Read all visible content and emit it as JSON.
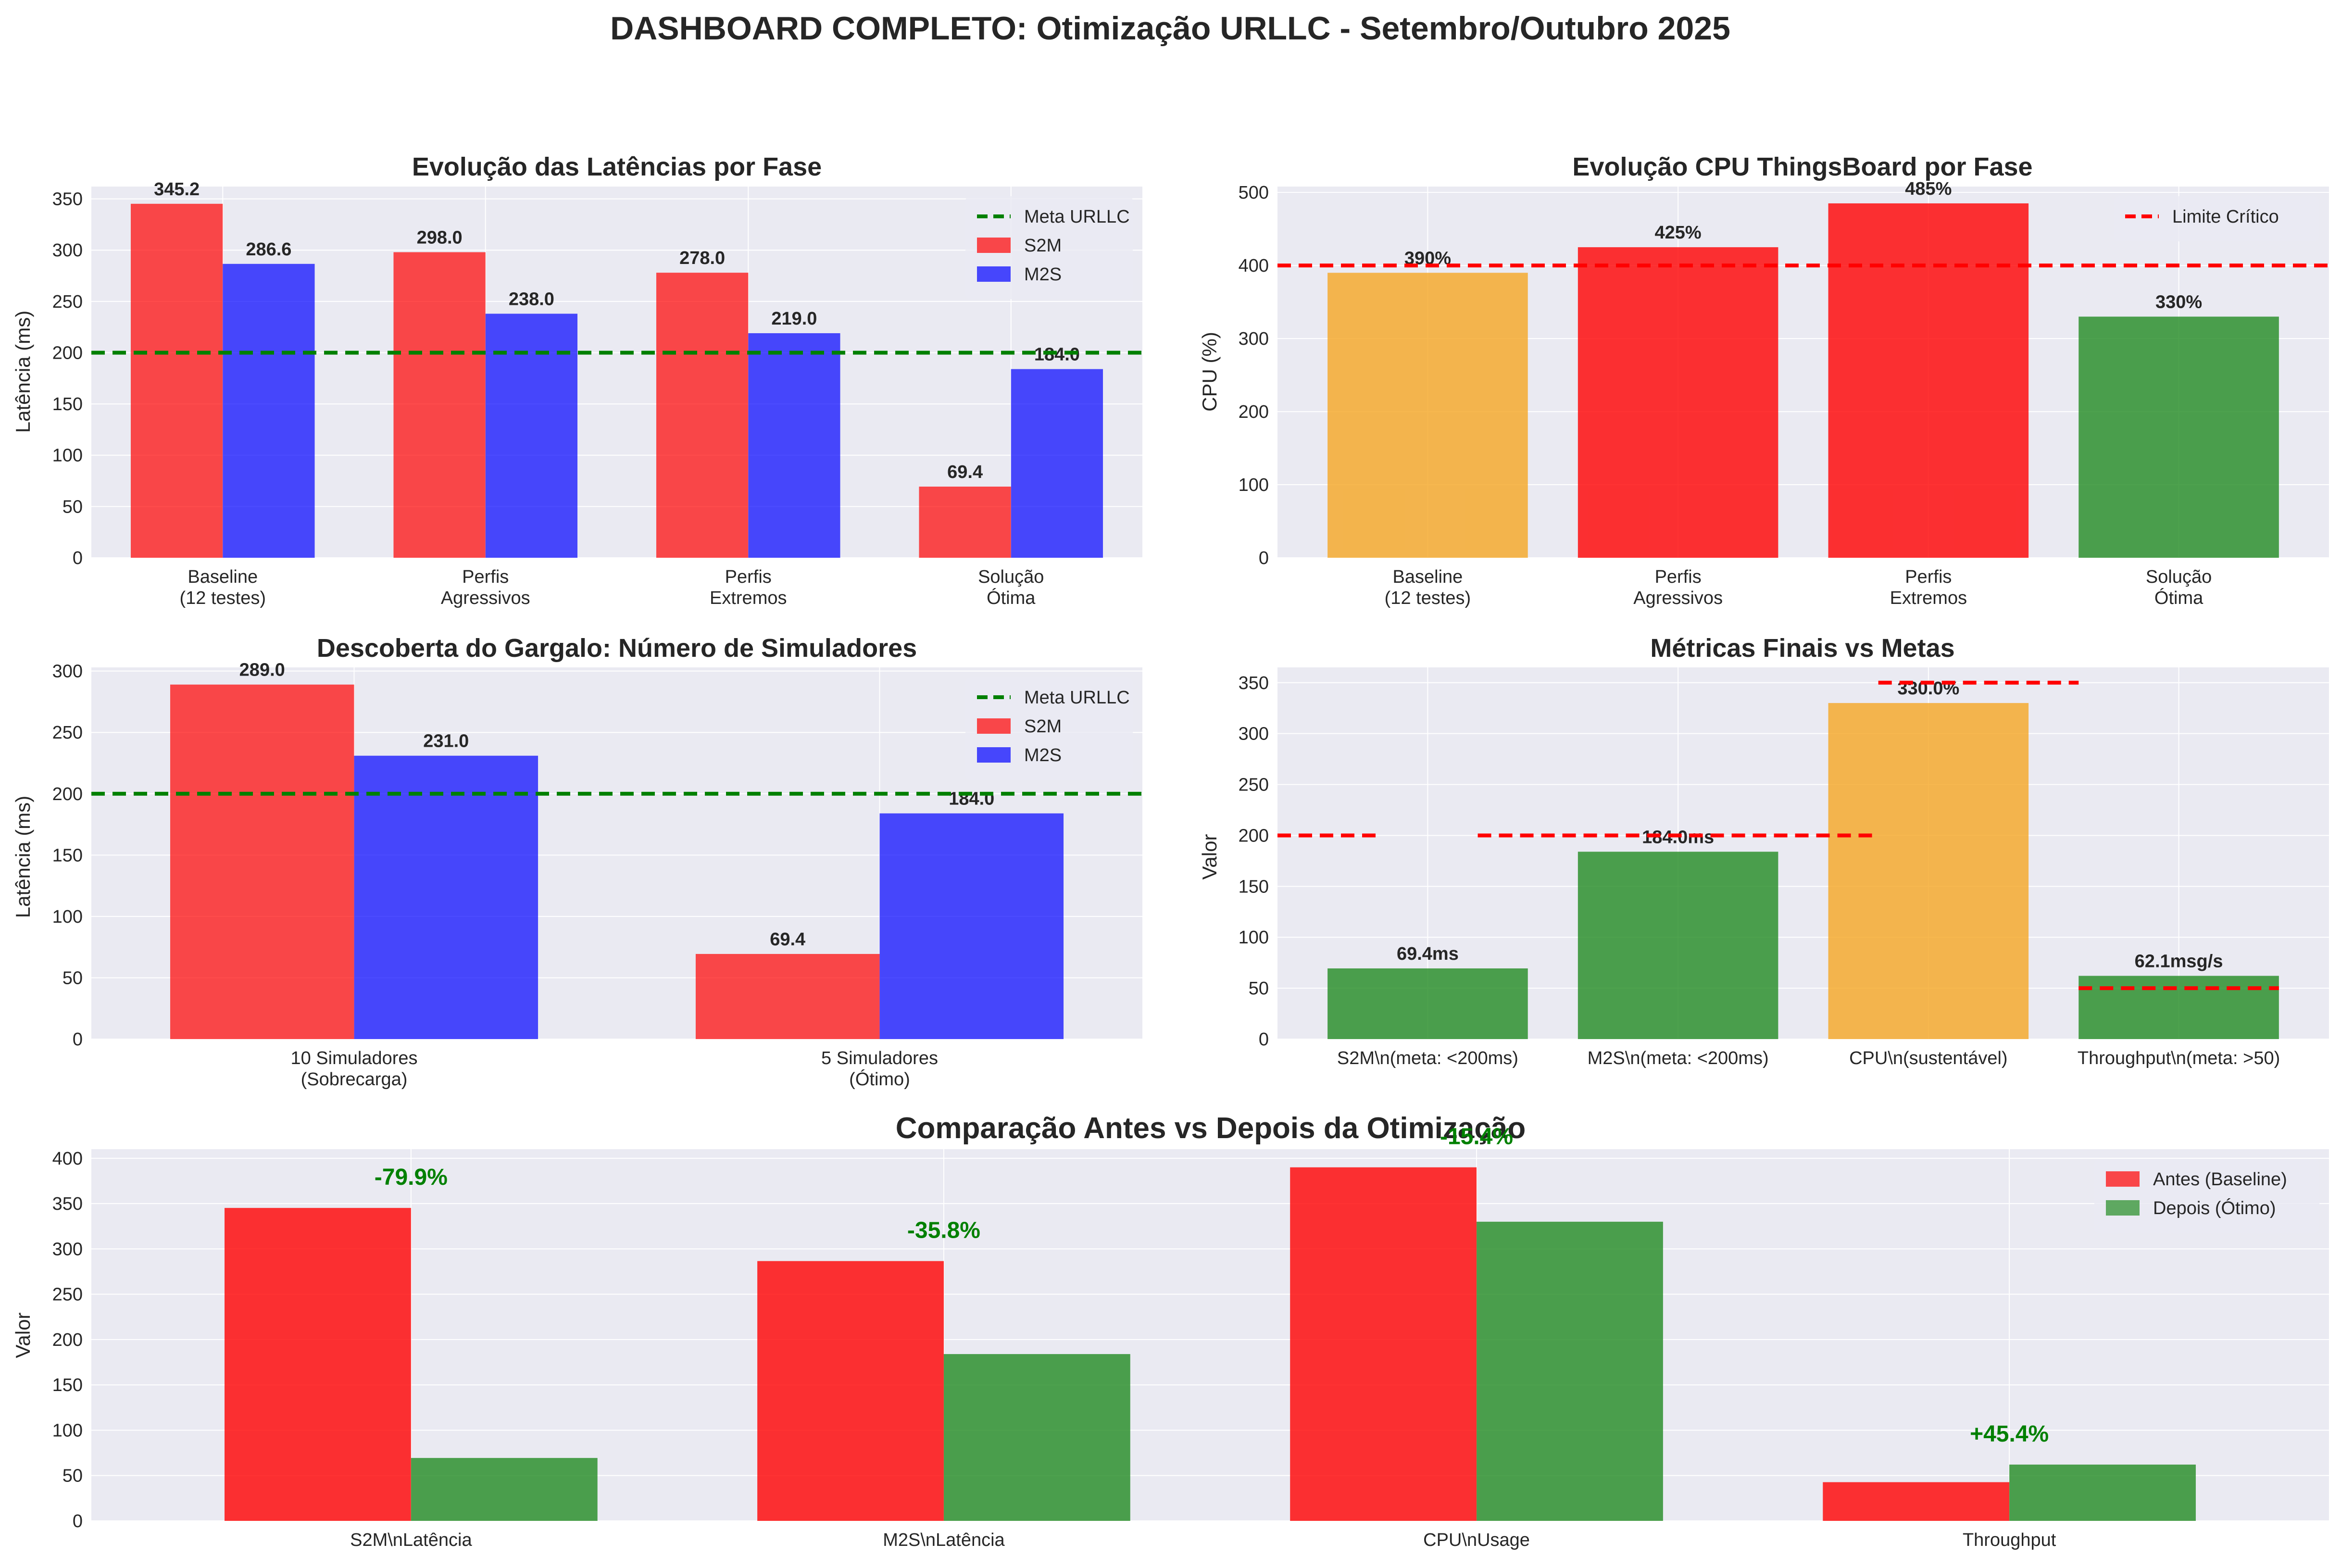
{
  "title": "DASHBOARD COMPLETO: Otimização URLLC - Setembro/Outubro 2025",
  "colors": {
    "s2m": "#FF0000",
    "m2s": "#0000FF",
    "target_green": "#008000",
    "limit_red": "#FF0000",
    "warning_orange": "#F5A623",
    "good_green": "#228B22",
    "axes_bg": "#EAEAF2",
    "grid": "#FFFFFF",
    "gain_text": "#008000"
  },
  "chart_data": [
    {
      "id": "latency",
      "type": "bar",
      "title": "Evolução das Latências por Fase",
      "xlabel": "",
      "ylabel": "Latência (ms)",
      "categories": [
        [
          "Baseline",
          "(12 testes)"
        ],
        [
          "Perfis",
          "Agressivos"
        ],
        [
          "Perfis",
          "Extremos"
        ],
        [
          "Solução",
          "Ótima"
        ]
      ],
      "series": [
        {
          "name": "S2M",
          "values": [
            345.2,
            298.0,
            278.0,
            69.4
          ],
          "labels": [
            "345.2",
            "298.0",
            "278.0",
            "69.4"
          ],
          "color": "#FF0000"
        },
        {
          "name": "M2S",
          "values": [
            286.6,
            238.0,
            219.0,
            184.0
          ],
          "labels": [
            "286.6",
            "238.0",
            "219.0",
            "184.0"
          ],
          "color": "#0000FF"
        }
      ],
      "hlines": [
        {
          "name": "Meta URLLC",
          "y": 200,
          "color": "#008000"
        }
      ],
      "legend": [
        "Meta URLLC",
        "S2M",
        "M2S"
      ],
      "legend_position": "top-right",
      "ylim": [
        0,
        362
      ],
      "yticks": [
        0,
        50,
        100,
        150,
        200,
        250,
        300,
        350
      ],
      "grid": true
    },
    {
      "id": "cpu",
      "type": "bar",
      "title": "Evolução CPU ThingsBoard por Fase",
      "xlabel": "",
      "ylabel": "CPU (%)",
      "categories": [
        [
          "Baseline",
          "(12 testes)"
        ],
        [
          "Perfis",
          "Agressivos"
        ],
        [
          "Perfis",
          "Extremos"
        ],
        [
          "Solução",
          "Ótima"
        ]
      ],
      "values": [
        390,
        425,
        485,
        330
      ],
      "labels": [
        "390%",
        "425%",
        "485%",
        "330%"
      ],
      "bar_colors": [
        "#F5A623",
        "#FF0000",
        "#FF0000",
        "#228B22"
      ],
      "hlines": [
        {
          "name": "Limite Crítico",
          "y": 400,
          "color": "#FF0000"
        }
      ],
      "legend": [
        "Limite Crítico"
      ],
      "legend_position": "top-right",
      "ylim": [
        0,
        508
      ],
      "yticks": [
        0,
        100,
        200,
        300,
        400,
        500
      ],
      "grid": true
    },
    {
      "id": "simulators",
      "type": "bar",
      "title": "Descoberta do Gargalo: Número de Simuladores",
      "xlabel": "",
      "ylabel": "Latência (ms)",
      "categories": [
        [
          "10 Simuladores",
          "(Sobrecarga)"
        ],
        [
          "5 Simuladores",
          "(Ótimo)"
        ]
      ],
      "series": [
        {
          "name": "S2M",
          "values": [
            289.0,
            69.4
          ],
          "labels": [
            "289.0",
            "69.4"
          ],
          "color": "#FF0000"
        },
        {
          "name": "M2S",
          "values": [
            231.0,
            184.0
          ],
          "labels": [
            "231.0",
            "184.0"
          ],
          "color": "#0000FF"
        }
      ],
      "hlines": [
        {
          "name": "Meta URLLC",
          "y": 200,
          "color": "#008000"
        }
      ],
      "legend": [
        "Meta URLLC",
        "S2M",
        "M2S"
      ],
      "legend_position": "top-right",
      "ylim": [
        0,
        303
      ],
      "yticks": [
        0,
        50,
        100,
        150,
        200,
        250,
        300
      ],
      "grid": true
    },
    {
      "id": "final",
      "type": "bar",
      "title": "Métricas Finais vs Metas",
      "xlabel": "",
      "ylabel": "Valor",
      "categories": [
        [
          "S2M\\n(meta: <200ms)"
        ],
        [
          "M2S\\n(meta: <200ms)"
        ],
        [
          "CPU\\n(sustentável)"
        ],
        [
          "Throughput\\n(meta: >50)"
        ]
      ],
      "values": [
        69.4,
        184.0,
        330.0,
        62.1
      ],
      "labels": [
        "69.4ms",
        "184.0ms",
        "330.0%",
        "62.1msg/s"
      ],
      "bar_colors": [
        "#228B22",
        "#228B22",
        "#F5A623",
        "#228B22"
      ],
      "target_lines": [
        {
          "y": 200,
          "from": -0.8,
          "to": -0.2
        },
        {
          "y": 200,
          "from": 0.2,
          "to": 1.8
        },
        {
          "y": 350,
          "from": 1.8,
          "to": 2.6
        },
        {
          "y": 50,
          "from": 2.6,
          "to": 3.4
        }
      ],
      "ylim": [
        0,
        365
      ],
      "yticks": [
        0,
        50,
        100,
        150,
        200,
        250,
        300,
        350
      ],
      "grid": true
    },
    {
      "id": "compare",
      "type": "bar",
      "title": "Comparação Antes vs Depois da Otimização",
      "xlabel": "",
      "ylabel": "Valor",
      "categories": [
        [
          "S2M\\nLatência"
        ],
        [
          "M2S\\nLatência"
        ],
        [
          "CPU\\nUsage"
        ],
        [
          "Throughput"
        ]
      ],
      "series": [
        {
          "name": "Antes (Baseline)",
          "values": [
            345.2,
            286.6,
            390,
            42.7
          ],
          "color": "#FF0000"
        },
        {
          "name": "Depois (Ótimo)",
          "values": [
            69.4,
            184.0,
            330,
            62.1
          ],
          "color": "#228B22"
        }
      ],
      "annotations": [
        "-79.9%",
        "-35.8%",
        "-15.4%",
        "+45.4%"
      ],
      "legend": [
        "Antes (Baseline)",
        "Depois (Ótimo)"
      ],
      "legend_position": "top-right",
      "ylim": [
        0,
        410
      ],
      "yticks": [
        0,
        50,
        100,
        150,
        200,
        250,
        300,
        350,
        400
      ],
      "grid": true
    }
  ]
}
